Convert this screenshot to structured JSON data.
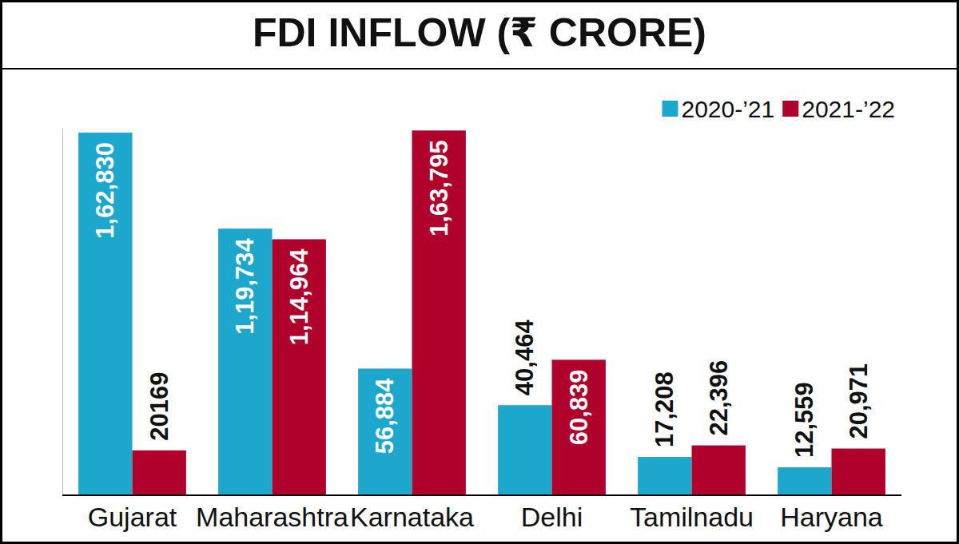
{
  "chart_data": {
    "type": "bar",
    "title": "FDI INFLOW (₹ CRORE)",
    "categories": [
      "Gujarat",
      "Maharashtra",
      "Karnataka",
      "Delhi",
      "Tamilnadu",
      "Haryana"
    ],
    "series": [
      {
        "name": "2020-’21",
        "color": "#1ea7cc",
        "values": [
          162830,
          119734,
          56884,
          40464,
          17208,
          12559
        ],
        "value_labels": [
          "1,62,830",
          "1,19,734",
          "56,884",
          "40,464",
          "17,208",
          "12,559"
        ]
      },
      {
        "name": "2021-’22",
        "color": "#b0002c",
        "values": [
          20169,
          114964,
          163795,
          60839,
          22396,
          20971
        ],
        "value_labels": [
          "20169",
          "1,14,964",
          "1,63,795",
          "60,839",
          "22,396",
          "20,971"
        ]
      }
    ],
    "ylim": [
      0,
      165000
    ],
    "data_labels": true,
    "tick_labels": "x",
    "grid": false,
    "legend": "top-right"
  }
}
